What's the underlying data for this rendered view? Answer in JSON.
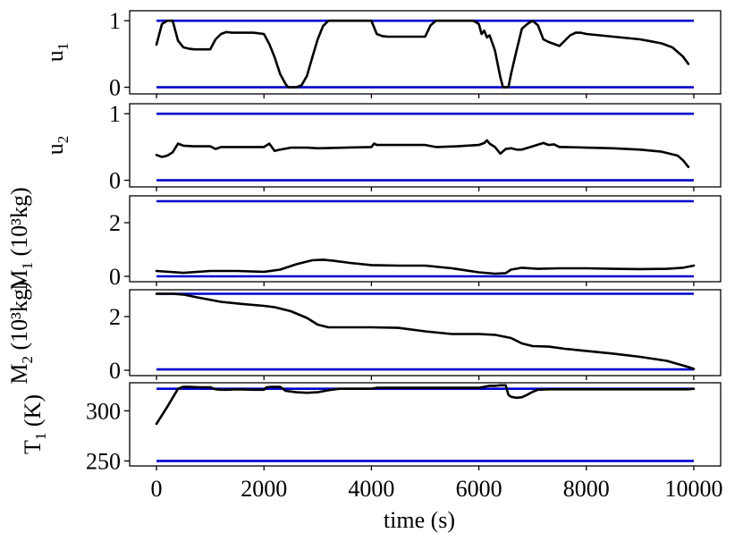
{
  "chart_data": {
    "type": "line",
    "xlabel": "time (s)",
    "xlim": [
      -500,
      10500
    ],
    "xticks": [
      "0",
      "2000",
      "4000",
      "6000",
      "8000",
      "10000"
    ],
    "bound_color": "#0000cc",
    "trace_color": "#000000",
    "panels": [
      {
        "id": "u1",
        "ylabel_main": "u",
        "ylabel_sub": "1",
        "ylabel_unit": "",
        "ylim": [
          -0.1,
          1.15
        ],
        "yticks": [
          0,
          1
        ],
        "ytick_labels": [
          "0",
          "1"
        ],
        "bounds": [
          0,
          1
        ],
        "x": [
          0,
          100,
          200,
          300,
          400,
          500,
          600,
          700,
          800,
          900,
          1000,
          1100,
          1200,
          1300,
          1400,
          1600,
          1800,
          2000,
          2100,
          2200,
          2300,
          2400,
          2450,
          2500,
          2550,
          2600,
          2700,
          2800,
          2900,
          3000,
          3100,
          3200,
          3300,
          3500,
          3800,
          4000,
          4100,
          4200,
          4300,
          4500,
          4800,
          5000,
          5100,
          5200,
          5300,
          5600,
          5900,
          6000,
          6050,
          6100,
          6150,
          6200,
          6300,
          6400,
          6450,
          6500,
          6550,
          6600,
          6700,
          6800,
          6900,
          7000,
          7100,
          7200,
          7300,
          7500,
          7600,
          7700,
          7800,
          7900,
          8000,
          8500,
          9000,
          9200,
          9400,
          9600,
          9800,
          9900
        ],
        "y": [
          0.64,
          0.95,
          1.0,
          1.0,
          0.7,
          0.6,
          0.58,
          0.57,
          0.57,
          0.57,
          0.57,
          0.72,
          0.8,
          0.83,
          0.82,
          0.82,
          0.82,
          0.8,
          0.65,
          0.45,
          0.2,
          0.05,
          0.0,
          0.0,
          0.0,
          0.0,
          0.03,
          0.17,
          0.45,
          0.72,
          0.92,
          1.0,
          1.0,
          1.0,
          1.0,
          1.0,
          0.8,
          0.77,
          0.76,
          0.76,
          0.76,
          0.76,
          0.93,
          1.0,
          1.0,
          1.0,
          1.0,
          0.95,
          0.8,
          0.85,
          0.75,
          0.78,
          0.55,
          0.15,
          0.0,
          0.0,
          0.0,
          0.2,
          0.55,
          0.88,
          0.95,
          1.0,
          0.93,
          0.72,
          0.68,
          0.62,
          0.7,
          0.78,
          0.82,
          0.82,
          0.8,
          0.76,
          0.72,
          0.69,
          0.66,
          0.6,
          0.46,
          0.35
        ]
      },
      {
        "id": "u2",
        "ylabel_main": "u",
        "ylabel_sub": "2",
        "ylabel_unit": "",
        "ylim": [
          -0.1,
          1.15
        ],
        "yticks": [
          0,
          1
        ],
        "ytick_labels": [
          "0",
          "1"
        ],
        "bounds": [
          0,
          1
        ],
        "x": [
          0,
          100,
          200,
          300,
          400,
          500,
          700,
          1000,
          1100,
          1200,
          1500,
          2000,
          2100,
          2200,
          2300,
          2500,
          2800,
          3000,
          3500,
          4000,
          4050,
          4100,
          4300,
          5000,
          5200,
          5600,
          6000,
          6100,
          6150,
          6200,
          6300,
          6400,
          6500,
          6600,
          6700,
          6800,
          7000,
          7200,
          7300,
          7400,
          7500,
          7600,
          8000,
          8500,
          9000,
          9400,
          9700,
          9800,
          9900
        ],
        "y": [
          0.38,
          0.35,
          0.37,
          0.42,
          0.55,
          0.52,
          0.51,
          0.51,
          0.47,
          0.5,
          0.5,
          0.5,
          0.55,
          0.44,
          0.46,
          0.49,
          0.49,
          0.48,
          0.49,
          0.5,
          0.55,
          0.53,
          0.53,
          0.53,
          0.5,
          0.51,
          0.53,
          0.56,
          0.6,
          0.55,
          0.5,
          0.4,
          0.47,
          0.48,
          0.46,
          0.46,
          0.51,
          0.56,
          0.53,
          0.54,
          0.5,
          0.5,
          0.49,
          0.48,
          0.46,
          0.43,
          0.37,
          0.3,
          0.2
        ]
      },
      {
        "id": "M1",
        "ylabel_main": "M",
        "ylabel_sub": "1",
        "ylabel_unit": "(10³kg)",
        "ylim": [
          -0.2,
          3.0
        ],
        "yticks": [
          0,
          2
        ],
        "ytick_labels": [
          "0",
          "2"
        ],
        "bounds": [
          0,
          2.8
        ],
        "x": [
          0,
          500,
          1000,
          1500,
          2000,
          2300,
          2600,
          2900,
          3100,
          3300,
          3600,
          4000,
          4500,
          5000,
          5500,
          6000,
          6300,
          6500,
          6600,
          6800,
          7100,
          7500,
          8000,
          8500,
          9000,
          9500,
          9800,
          10000
        ],
        "y": [
          0.2,
          0.13,
          0.2,
          0.2,
          0.17,
          0.25,
          0.45,
          0.6,
          0.62,
          0.58,
          0.5,
          0.42,
          0.4,
          0.4,
          0.3,
          0.15,
          0.1,
          0.12,
          0.25,
          0.32,
          0.28,
          0.3,
          0.3,
          0.28,
          0.27,
          0.28,
          0.32,
          0.4
        ]
      },
      {
        "id": "M2",
        "ylabel_main": "M",
        "ylabel_sub": "2",
        "ylabel_unit": "(10³kg)",
        "ylim": [
          -0.2,
          3.0
        ],
        "yticks": [
          0,
          2
        ],
        "ytick_labels": [
          "0",
          "2"
        ],
        "bounds": [
          0.03,
          2.85
        ],
        "x": [
          0,
          300,
          500,
          800,
          1200,
          1600,
          2000,
          2200,
          2500,
          2800,
          3000,
          3200,
          4000,
          4500,
          5000,
          5500,
          6000,
          6300,
          6600,
          6800,
          7000,
          7300,
          7600,
          8000,
          8500,
          9000,
          9500,
          9900,
          10000
        ],
        "y": [
          2.85,
          2.85,
          2.82,
          2.7,
          2.55,
          2.47,
          2.4,
          2.35,
          2.2,
          1.95,
          1.7,
          1.6,
          1.6,
          1.58,
          1.45,
          1.35,
          1.35,
          1.32,
          1.2,
          1.0,
          0.9,
          0.88,
          0.8,
          0.72,
          0.62,
          0.5,
          0.35,
          0.12,
          0.05
        ]
      },
      {
        "id": "T1",
        "ylabel_main": "T",
        "ylabel_sub": "1",
        "ylabel_unit": "(K)",
        "ylim": [
          245,
          328
        ],
        "yticks": [
          250,
          300
        ],
        "ytick_labels": [
          "250",
          "300"
        ],
        "bounds": [
          250,
          322
        ],
        "x": [
          0,
          200,
          400,
          500,
          600,
          800,
          1000,
          1100,
          1200,
          1300,
          1500,
          1800,
          2000,
          2050,
          2150,
          2300,
          2400,
          2600,
          2800,
          3000,
          3200,
          3400,
          3500,
          3700,
          4000,
          4100,
          4500,
          5000,
          5600,
          6000,
          6200,
          6300,
          6400,
          6500,
          6550,
          6600,
          6700,
          6800,
          6900,
          7000,
          7100,
          7300,
          7500,
          8000,
          8500,
          9000,
          9500,
          9900,
          10000
        ],
        "y": [
          287,
          304,
          322,
          324,
          324,
          323.5,
          323.5,
          321.5,
          321,
          321,
          321.5,
          321,
          321,
          323.5,
          324,
          324,
          320,
          318.5,
          318,
          318.5,
          320.5,
          322,
          322,
          322,
          322,
          323,
          323,
          323,
          323,
          323,
          325,
          325,
          325.5,
          325.5,
          316,
          314,
          313,
          313.5,
          316,
          319,
          321,
          321.5,
          321.5,
          321.5,
          321.5,
          321.5,
          321.5,
          321.5,
          322
        ]
      }
    ]
  }
}
